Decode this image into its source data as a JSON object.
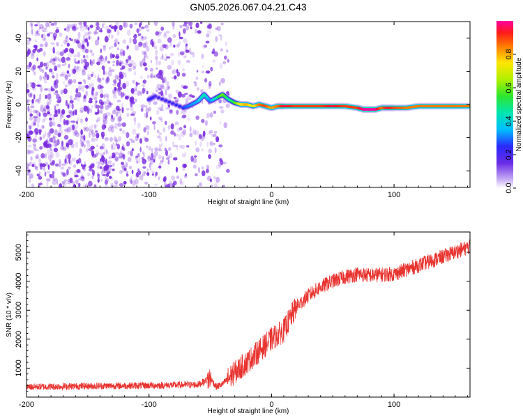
{
  "title": "GN05.2026.067.04.21.C43",
  "colors": {
    "trace": "#e8332f",
    "noise": "#7a2be0",
    "frame": "#000000"
  },
  "chart_data": [
    {
      "type": "heatmap",
      "name": "spectrogram",
      "xlabel": "Height of straight line (km)",
      "ylabel": "Frequency (Hz)",
      "xlim": [
        -200,
        162
      ],
      "ylim": [
        -50,
        50
      ],
      "xticks": [
        "-200",
        "-100",
        "0",
        "100"
      ],
      "xtick_values": [
        -200,
        -100,
        0,
        100
      ],
      "yticks": [
        "-40",
        "-20",
        "0",
        "20",
        "40"
      ],
      "ytick_values": [
        -40,
        -20,
        0,
        20,
        40
      ],
      "colorbar": {
        "label": "Normalized spectral amplitude",
        "ticks": [
          "0.0",
          "0.2",
          "0.4",
          "0.6",
          "0.8"
        ],
        "tick_values": [
          0.0,
          0.2,
          0.4,
          0.6,
          0.8
        ],
        "range": [
          0,
          1
        ]
      },
      "ridge": [
        {
          "x": -100,
          "f": 3,
          "a": 0.25
        },
        {
          "x": -95,
          "f": 5,
          "a": 0.2
        },
        {
          "x": -72,
          "f": -2,
          "a": 0.25
        },
        {
          "x": -68,
          "f": -1,
          "a": 0.3
        },
        {
          "x": -60,
          "f": 2,
          "a": 0.35
        },
        {
          "x": -55,
          "f": 6,
          "a": 0.45
        },
        {
          "x": -50,
          "f": 2,
          "a": 0.3
        },
        {
          "x": -45,
          "f": 4,
          "a": 0.45
        },
        {
          "x": -40,
          "f": 6,
          "a": 0.6
        },
        {
          "x": -35,
          "f": 3,
          "a": 0.45
        },
        {
          "x": -30,
          "f": 1,
          "a": 0.55
        },
        {
          "x": -25,
          "f": 0,
          "a": 0.75
        },
        {
          "x": -20,
          "f": 0,
          "a": 0.8
        },
        {
          "x": -15,
          "f": -1,
          "a": 0.7
        },
        {
          "x": -10,
          "f": 0,
          "a": 0.85
        },
        {
          "x": -5,
          "f": -1,
          "a": 0.9
        },
        {
          "x": 0,
          "f": -2,
          "a": 0.8
        },
        {
          "x": 5,
          "f": -1,
          "a": 0.85
        },
        {
          "x": 10,
          "f": -1,
          "a": 0.95
        },
        {
          "x": 20,
          "f": -1,
          "a": 0.9
        },
        {
          "x": 30,
          "f": -1,
          "a": 0.9
        },
        {
          "x": 40,
          "f": -1,
          "a": 0.9
        },
        {
          "x": 50,
          "f": -1,
          "a": 0.95
        },
        {
          "x": 60,
          "f": -1,
          "a": 0.9
        },
        {
          "x": 70,
          "f": -2,
          "a": 0.9
        },
        {
          "x": 75,
          "f": -3,
          "a": 1.0
        },
        {
          "x": 80,
          "f": -3,
          "a": 1.0
        },
        {
          "x": 85,
          "f": -3,
          "a": 1.0
        },
        {
          "x": 90,
          "f": -2,
          "a": 0.85
        },
        {
          "x": 95,
          "f": -2,
          "a": 0.95
        },
        {
          "x": 100,
          "f": -2,
          "a": 0.9
        },
        {
          "x": 110,
          "f": -2,
          "a": 0.85
        },
        {
          "x": 120,
          "f": -1,
          "a": 0.85
        },
        {
          "x": 130,
          "f": -1,
          "a": 0.85
        },
        {
          "x": 140,
          "f": -1,
          "a": 0.85
        },
        {
          "x": 150,
          "f": -1,
          "a": 0.85
        },
        {
          "x": 162,
          "f": -1,
          "a": 0.85
        }
      ]
    },
    {
      "type": "line",
      "name": "snr",
      "xlabel": "Height of straight line (km)",
      "ylabel": "SNR (10 * v/v)",
      "xlim": [
        -200,
        162
      ],
      "ylim": [
        0,
        5700
      ],
      "xticks": [
        "-200",
        "-100",
        "0",
        "100"
      ],
      "xtick_values": [
        -200,
        -100,
        0,
        100
      ],
      "yticks": [
        "1000",
        "2000",
        "3000",
        "4000",
        "5000"
      ],
      "ytick_values": [
        1000,
        2000,
        3000,
        4000,
        5000
      ],
      "series": [
        {
          "name": "SNR",
          "x": [
            -200,
            -150,
            -100,
            -60,
            -50,
            -45,
            -40,
            -30,
            -20,
            -10,
            0,
            10,
            20,
            30,
            40,
            50,
            60,
            70,
            80,
            100,
            120,
            140,
            162
          ],
          "y": [
            350,
            380,
            400,
            430,
            650,
            350,
            450,
            850,
            1200,
            1600,
            2000,
            2300,
            3100,
            3500,
            3800,
            4000,
            4150,
            4250,
            4200,
            4250,
            4550,
            4850,
            5200
          ]
        }
      ]
    }
  ]
}
